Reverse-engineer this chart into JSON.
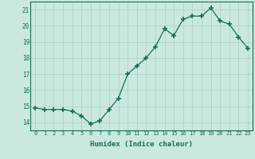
{
  "x": [
    0,
    1,
    2,
    3,
    4,
    5,
    6,
    7,
    8,
    9,
    10,
    11,
    12,
    13,
    14,
    15,
    16,
    17,
    18,
    19,
    20,
    21,
    22,
    23
  ],
  "y": [
    14.9,
    14.8,
    14.8,
    14.8,
    14.7,
    14.4,
    13.9,
    14.1,
    14.8,
    15.5,
    17.0,
    17.5,
    18.0,
    18.7,
    19.8,
    19.4,
    20.4,
    20.6,
    20.6,
    21.1,
    20.3,
    20.1,
    19.3,
    18.6
  ],
  "xlabel": "Humidex (Indice chaleur)",
  "ylim": [
    13.5,
    21.5
  ],
  "xlim": [
    -0.5,
    23.5
  ],
  "yticks": [
    14,
    15,
    16,
    17,
    18,
    19,
    20,
    21
  ],
  "xtick_labels": [
    "0",
    "1",
    "2",
    "3",
    "4",
    "5",
    "6",
    "7",
    "8",
    "9",
    "10",
    "11",
    "12",
    "13",
    "14",
    "15",
    "16",
    "17",
    "18",
    "19",
    "20",
    "21",
    "22",
    "23"
  ],
  "line_color": "#1a6b5a",
  "marker": "+",
  "marker_size": 4,
  "bg_color": "#c8e8e0",
  "grid_color": "#b0ccc4",
  "label_color": "#1a6b5a",
  "tick_color": "#1a6b5a",
  "border_color": "#1a6b5a"
}
